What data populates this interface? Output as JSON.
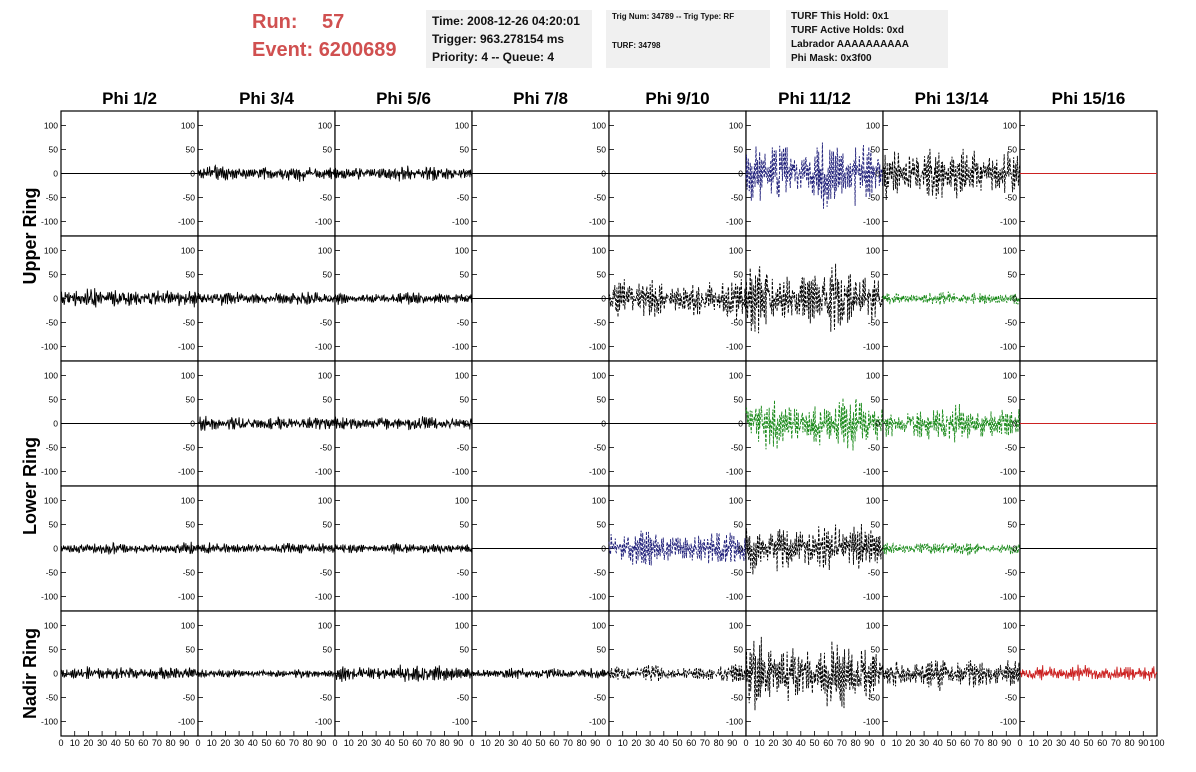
{
  "header": {
    "run_label": "Run:",
    "run_value": "57",
    "event_label": "Event:",
    "event_value": "6200689",
    "time": "Time: 2008-12-26 04:20:01",
    "trigger": "Trigger: 963.278154 ms",
    "priority": "Priority: 4 -- Queue: 4",
    "trig_num": "Trig Num: 34789 -- Trig Type: RF",
    "turf": "TURF: 34798",
    "turf_this_hold": "TURF This Hold: 0x1",
    "turf_active_holds": "TURF Active Holds: 0xd",
    "labrador": "Labrador AAAAAAAAAA",
    "phi_mask": "Phi Mask: 0x3f00"
  },
  "chart_data": {
    "type": "line",
    "title": "",
    "columns": [
      "Phi 1/2",
      "Phi 3/4",
      "Phi 5/6",
      "Phi 7/8",
      "Phi 9/10",
      "Phi 11/12",
      "Phi 13/14",
      "Phi 15/16"
    ],
    "ring_labels": [
      "Upper Ring",
      "Lower Ring",
      "Nadir Ring"
    ],
    "xlim": [
      0,
      100
    ],
    "ylim": [
      -120,
      120
    ],
    "x_ticks": [
      0,
      10,
      20,
      30,
      40,
      50,
      60,
      70,
      80,
      90,
      100
    ],
    "x_tick_labels": [
      "0",
      "10",
      "20",
      "30",
      "40",
      "50",
      "60",
      "70",
      "80",
      "90",
      "100"
    ],
    "last_x_tick_label": "100",
    "y_ticks": [
      100,
      50,
      0,
      -50,
      -100
    ],
    "y_tick_labels": [
      "100",
      "50",
      "0",
      "-50",
      "-100"
    ],
    "colors": {
      "black": "#000000",
      "blue": "#20207a",
      "green": "#1a8a1a",
      "red": "#cc2222"
    },
    "rows": [
      [
        {
          "amp": 0,
          "color": "black",
          "dash": false
        },
        {
          "amp": 14,
          "color": "black",
          "dash": false
        },
        {
          "amp": 14,
          "color": "black",
          "dash": false
        },
        {
          "amp": 0,
          "color": "black",
          "dash": false
        },
        {
          "amp": 0,
          "color": "black",
          "dash": false
        },
        {
          "amp": 60,
          "color": "blue",
          "dash": true
        },
        {
          "amp": 50,
          "color": "black",
          "dash": true
        },
        {
          "amp": 0,
          "color": "red",
          "dash": false
        }
      ],
      [
        {
          "amp": 18,
          "color": "black",
          "dash": false
        },
        {
          "amp": 13,
          "color": "black",
          "dash": false
        },
        {
          "amp": 11,
          "color": "black",
          "dash": false
        },
        {
          "amp": 0,
          "color": "black",
          "dash": false
        },
        {
          "amp": 35,
          "color": "black",
          "dash": true
        },
        {
          "amp": 60,
          "color": "black",
          "dash": true
        },
        {
          "amp": 12,
          "color": "green",
          "dash": true
        },
        {
          "amp": 0,
          "color": "black",
          "dash": false
        }
      ],
      [
        {
          "amp": 0,
          "color": "black",
          "dash": false
        },
        {
          "amp": 13,
          "color": "black",
          "dash": false
        },
        {
          "amp": 13,
          "color": "black",
          "dash": false
        },
        {
          "amp": 0,
          "color": "black",
          "dash": false
        },
        {
          "amp": 0,
          "color": "black",
          "dash": false
        },
        {
          "amp": 45,
          "color": "green",
          "dash": true
        },
        {
          "amp": 35,
          "color": "green",
          "dash": true
        },
        {
          "amp": 0,
          "color": "red",
          "dash": false
        }
      ],
      [
        {
          "amp": 11,
          "color": "black",
          "dash": false
        },
        {
          "amp": 10,
          "color": "black",
          "dash": false
        },
        {
          "amp": 10,
          "color": "black",
          "dash": false
        },
        {
          "amp": 0,
          "color": "black",
          "dash": false
        },
        {
          "amp": 32,
          "color": "blue",
          "dash": true
        },
        {
          "amp": 45,
          "color": "black",
          "dash": true
        },
        {
          "amp": 12,
          "color": "green",
          "dash": true
        },
        {
          "amp": 0,
          "color": "black",
          "dash": false
        }
      ],
      [
        {
          "amp": 13,
          "color": "black",
          "dash": false
        },
        {
          "amp": 8,
          "color": "black",
          "dash": false
        },
        {
          "amp": 16,
          "color": "black",
          "dash": false
        },
        {
          "amp": 10,
          "color": "black",
          "dash": false
        },
        {
          "amp": 15,
          "color": "black",
          "dash": true
        },
        {
          "amp": 60,
          "color": "black",
          "dash": true
        },
        {
          "amp": 30,
          "color": "black",
          "dash": true
        },
        {
          "amp": 15,
          "color": "red",
          "dash": false
        }
      ]
    ]
  }
}
